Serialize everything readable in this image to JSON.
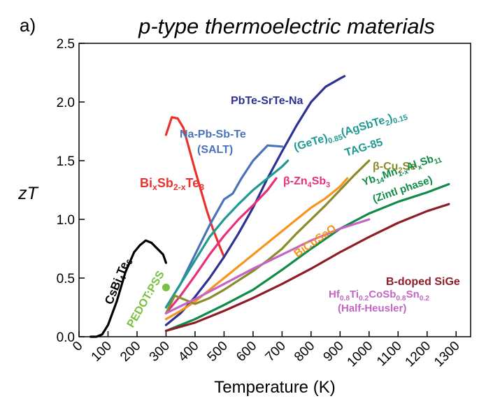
{
  "chart_data": {
    "type": "line",
    "panel_label": "a)",
    "title": "p-type thermoelectric materials",
    "xlabel": "Temperature (K)",
    "ylabel": "zT",
    "xlim": [
      0,
      1350
    ],
    "ylim": [
      0,
      2.5
    ],
    "xticks": [
      "0",
      "100",
      "200",
      "300",
      "400",
      "500",
      "600",
      "700",
      "800",
      "900",
      "1000",
      "1100",
      "1200",
      "1300"
    ],
    "yticks": [
      "0.0",
      "0.5",
      "1.0",
      "1.5",
      "2.0",
      "2.5"
    ],
    "grid": false,
    "legend": "none (direct labels)",
    "series": [
      {
        "name": "CsBi4Te6",
        "color": "#000000",
        "label_parts": [
          [
            "CsBi",
            ""
          ],
          [
            "4",
            "sub"
          ],
          [
            "Te",
            ""
          ],
          [
            "6",
            "sub"
          ]
        ],
        "x": [
          40,
          60,
          80,
          100,
          130,
          160,
          190,
          210,
          230,
          250,
          270,
          290,
          300
        ],
        "y": [
          0.0,
          0.0,
          0.02,
          0.1,
          0.3,
          0.55,
          0.72,
          0.78,
          0.82,
          0.8,
          0.75,
          0.7,
          0.63
        ]
      },
      {
        "name": "Bi_xSb_2-xTe_3",
        "color": "#e8322d",
        "label_parts": [
          [
            "Bi",
            ""
          ],
          [
            "x",
            "sub"
          ],
          [
            "Sb",
            ""
          ],
          [
            "2-x",
            "sub"
          ],
          [
            "Te",
            ""
          ],
          [
            "3",
            "sub"
          ]
        ],
        "x": [
          300,
          320,
          340,
          360,
          380,
          400,
          420,
          440,
          460,
          480,
          500
        ],
        "y": [
          1.72,
          1.87,
          1.86,
          1.78,
          1.6,
          1.42,
          1.25,
          1.08,
          0.93,
          0.8,
          0.68
        ]
      },
      {
        "name": "PEDOT:PSS",
        "color": "#7ac143",
        "label_parts": [
          [
            "PEDOT:PSS",
            ""
          ]
        ],
        "x": [
          300
        ],
        "y": [
          0.42
        ]
      },
      {
        "name": "PbTe-SrTe-Na",
        "color": "#2e3192",
        "label_parts": [
          [
            "PbTe-SrTe-Na",
            ""
          ]
        ],
        "x": [
          300,
          350,
          400,
          450,
          500,
          550,
          600,
          650,
          700,
          750,
          800,
          850,
          900,
          915
        ],
        "y": [
          0.1,
          0.2,
          0.34,
          0.5,
          0.68,
          0.88,
          1.1,
          1.35,
          1.58,
          1.8,
          2.0,
          2.13,
          2.2,
          2.22
        ]
      },
      {
        "name": "Na-Pb-Sb-Te (SALT)",
        "color": "#4a72b8",
        "label_parts": [
          [
            "Na-Pb-Sb-Te",
            ""
          ]
        ],
        "label2_parts": [
          [
            "(SALT)",
            ""
          ]
        ],
        "x": [
          300,
          350,
          400,
          450,
          500,
          530,
          560,
          600,
          650,
          700
        ],
        "y": [
          0.25,
          0.45,
          0.7,
          0.95,
          1.17,
          1.22,
          1.35,
          1.5,
          1.63,
          1.62
        ]
      },
      {
        "name": "(GeTe)0.85(AgSbTe2)0.15 TAG-85",
        "color": "#1f9a93",
        "label_parts": [
          [
            "(GeTe)",
            ""
          ],
          [
            "0.85",
            "sub"
          ],
          [
            "(AgSbTe",
            ""
          ],
          [
            "2",
            "sub"
          ],
          [
            ")",
            ""
          ],
          [
            "0.15",
            "sub"
          ]
        ],
        "label2_parts": [
          [
            "TAG-85",
            ""
          ]
        ],
        "x": [
          300,
          350,
          400,
          450,
          500,
          550,
          600,
          650,
          700,
          720
        ],
        "y": [
          0.25,
          0.45,
          0.65,
          0.85,
          1.0,
          1.13,
          1.25,
          1.35,
          1.45,
          1.5
        ]
      },
      {
        "name": "beta-Zn4Sb3",
        "color": "#e8307a",
        "label_parts": [
          [
            "β-Zn",
            ""
          ],
          [
            "4",
            "sub"
          ],
          [
            "Sb",
            ""
          ],
          [
            "3",
            "sub"
          ]
        ],
        "x": [
          300,
          350,
          400,
          450,
          500,
          550,
          600,
          650,
          680
        ],
        "y": [
          0.2,
          0.35,
          0.52,
          0.7,
          0.86,
          1.0,
          1.12,
          1.25,
          1.35
        ]
      },
      {
        "name": "BiCuSeO",
        "color": "#f7941d",
        "label_parts": [
          [
            "BiCuSeO",
            ""
          ]
        ],
        "x": [
          300,
          350,
          400,
          450,
          500,
          550,
          600,
          650,
          700,
          750,
          800,
          850,
          900,
          925
        ],
        "y": [
          0.15,
          0.22,
          0.3,
          0.4,
          0.5,
          0.6,
          0.7,
          0.8,
          0.9,
          1.0,
          1.1,
          1.18,
          1.28,
          1.35
        ]
      },
      {
        "name": "beta-Cu2Se",
        "color": "#8b8b2a",
        "label_parts": [
          [
            "β-Cu",
            ""
          ],
          [
            "2",
            "sub"
          ],
          [
            "Se",
            ""
          ]
        ],
        "x": [
          300,
          330,
          360,
          400,
          450,
          500,
          550,
          600,
          650,
          700,
          750,
          800,
          850,
          900,
          950,
          1000
        ],
        "y": [
          0.2,
          0.35,
          0.32,
          0.28,
          0.33,
          0.4,
          0.48,
          0.56,
          0.65,
          0.75,
          0.88,
          1.0,
          1.12,
          1.25,
          1.38,
          1.5
        ]
      },
      {
        "name": "Yb14Mn1-xAlxSb11 (Zintl phase)",
        "color": "#0f8a47",
        "label_parts": [
          [
            "Yb",
            ""
          ],
          [
            "14",
            "sub"
          ],
          [
            "Mn",
            ""
          ],
          [
            "1-x",
            "sub"
          ],
          [
            "Al",
            ""
          ],
          [
            "x",
            "sub"
          ],
          [
            "Sb",
            ""
          ],
          [
            "11",
            "sub"
          ]
        ],
        "label2_parts": [
          [
            "(Zintl phase)",
            ""
          ]
        ],
        "x": [
          300,
          400,
          500,
          600,
          700,
          800,
          900,
          1000,
          1100,
          1200,
          1275
        ],
        "y": [
          0.05,
          0.15,
          0.27,
          0.4,
          0.57,
          0.75,
          0.92,
          1.05,
          1.15,
          1.23,
          1.3
        ]
      },
      {
        "name": "Hf0.8Ti0.2CoSb0.8Sn0.2 (Half-Heusler)",
        "color": "#c366c3",
        "label_parts": [
          [
            "Hf",
            ""
          ],
          [
            "0.8",
            "sub"
          ],
          [
            "Ti",
            ""
          ],
          [
            "0.2",
            "sub"
          ],
          [
            "CoSb",
            ""
          ],
          [
            "0.8",
            "sub"
          ],
          [
            "Sn",
            ""
          ],
          [
            "0.2",
            "sub"
          ]
        ],
        "label2_parts": [
          [
            "(Half-Heusler)",
            ""
          ]
        ],
        "x": [
          300,
          400,
          500,
          600,
          700,
          800,
          900,
          1000
        ],
        "y": [
          0.2,
          0.32,
          0.45,
          0.58,
          0.7,
          0.82,
          0.92,
          1.0
        ]
      },
      {
        "name": "B-doped SiGe",
        "color": "#8e1d28",
        "label_parts": [
          [
            "B-doped SiGe",
            ""
          ]
        ],
        "x": [
          300,
          400,
          500,
          600,
          700,
          800,
          900,
          1000,
          1100,
          1200,
          1275
        ],
        "y": [
          0.05,
          0.12,
          0.22,
          0.33,
          0.45,
          0.58,
          0.72,
          0.85,
          0.97,
          1.07,
          1.13
        ]
      }
    ]
  }
}
